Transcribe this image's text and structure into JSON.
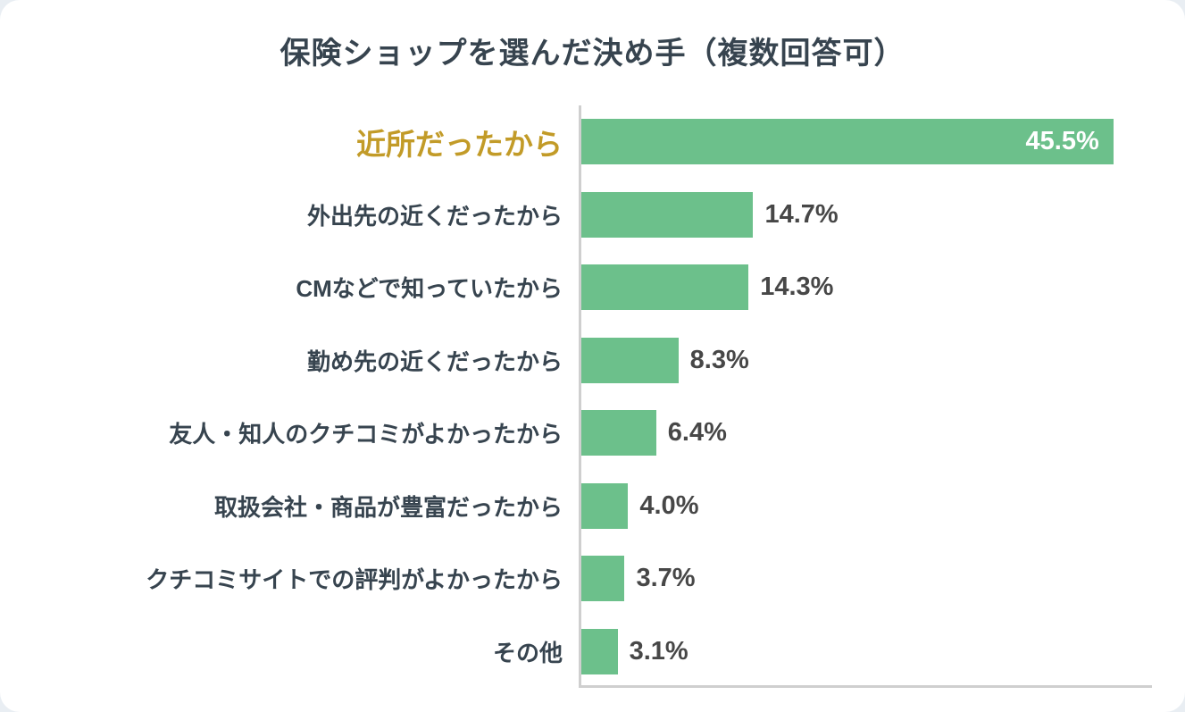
{
  "chart_data": {
    "type": "bar",
    "orientation": "horizontal",
    "title": "保険ショップを選んだ決め手（複数回答可）",
    "categories": [
      "近所だったから",
      "外出先の近くだったから",
      "CMなどで知っていたから",
      "勤め先の近くだったから",
      "友人・知人のクチコミがよかったから",
      "取扱会社・商品が豊富だったから",
      "クチコミサイトでの評判がよかったから",
      "その他"
    ],
    "values": [
      45.5,
      14.7,
      14.3,
      8.3,
      6.4,
      4.0,
      3.7,
      3.1
    ],
    "value_labels": [
      "45.5%",
      "14.7%",
      "14.3%",
      "8.3%",
      "6.4%",
      "4.0%",
      "3.7%",
      "3.1%"
    ],
    "xlim": [
      0,
      48.8
    ],
    "grid": false,
    "legend": false,
    "highlight_index": 0,
    "value_inside_indices": [
      0
    ],
    "colors": {
      "bar": "#6cc08b",
      "label": "#37444f",
      "highlight_label": "#c29b28",
      "value_inside": "#ffffff",
      "value_outside": "#474747",
      "axis": "#cfcfcf"
    }
  }
}
